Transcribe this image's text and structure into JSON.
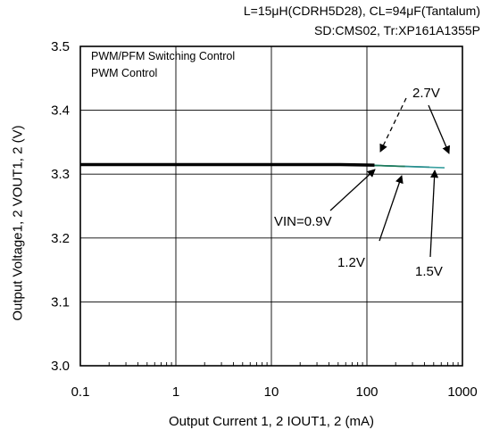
{
  "header": {
    "line1": "L=15μH(CDRH5D28), CL=94μF(Tantalum)",
    "line2": "SD:CMS02, Tr:XP161A1355P"
  },
  "notes": {
    "line1": "PWM/PFM Switching Control",
    "line2": "PWM  Control"
  },
  "annotations": {
    "vin_09": "VIN=0.9V",
    "vin_12": "1.2V",
    "vin_15": "1.5V",
    "vin_27": "2.7V"
  },
  "chart_data": {
    "type": "line",
    "xlabel": "Output Current 1, 2 IOUT1, 2 (mA)",
    "ylabel": "Output Voltage1, 2  VOUT1, 2 (V)",
    "x_scale": "log",
    "xlim": [
      0.1,
      1000
    ],
    "ylim": [
      3.0,
      3.5
    ],
    "x_ticks": [
      "0.1",
      "1",
      "10",
      "100",
      "1000"
    ],
    "y_ticks": [
      "3.0",
      "3.1",
      "3.2",
      "3.3",
      "3.4",
      "3.5"
    ],
    "grid": true,
    "series": [
      {
        "name": "VIN=0.9V",
        "color": "#000000",
        "x": [
          0.1,
          1,
          10,
          50,
          120
        ],
        "y": [
          3.315,
          3.315,
          3.315,
          3.315,
          3.314
        ]
      },
      {
        "name": "1.2V",
        "color": "#1f7a5a",
        "x": [
          0.1,
          1,
          10,
          100,
          250
        ],
        "y": [
          3.315,
          3.315,
          3.315,
          3.314,
          3.312
        ]
      },
      {
        "name": "1.5V",
        "color": "#2a8f8f",
        "x": [
          0.1,
          1,
          10,
          100,
          450
        ],
        "y": [
          3.315,
          3.315,
          3.315,
          3.314,
          3.311
        ]
      },
      {
        "name": "2.7V",
        "color": "#3aa0a0",
        "x": [
          0.1,
          1,
          10,
          100,
          650
        ],
        "y": [
          3.315,
          3.315,
          3.315,
          3.314,
          3.31
        ]
      }
    ]
  }
}
